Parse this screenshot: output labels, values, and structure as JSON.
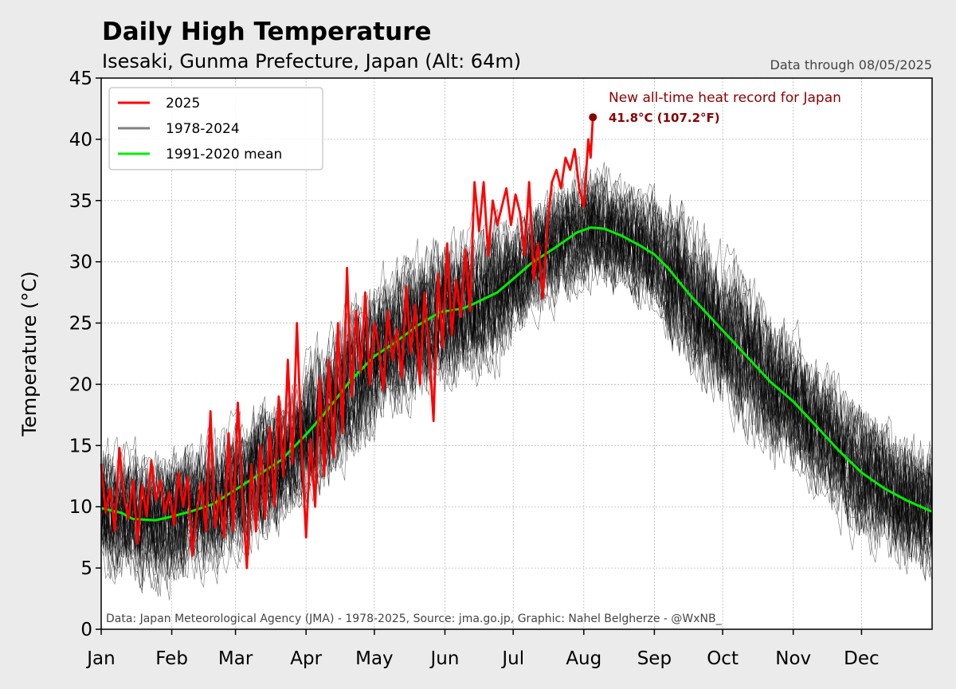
{
  "chart_data": {
    "type": "line",
    "title": "Daily High Temperature",
    "subtitle": "Isesaki, Gunma Prefecture, Japan (Alt: 64m)",
    "data_through": "Data through 08/05/2025",
    "ylabel": "Temperature (°C)",
    "xlabel": "",
    "ylim": [
      0,
      45
    ],
    "yticks": [
      0,
      5,
      10,
      15,
      20,
      25,
      30,
      35,
      40,
      45
    ],
    "xlim": [
      1,
      366
    ],
    "x_unit": "day of year",
    "month_ticks": [
      {
        "label": "Jan",
        "day": 1
      },
      {
        "label": "Feb",
        "day": 32
      },
      {
        "label": "Mar",
        "day": 60
      },
      {
        "label": "Apr",
        "day": 91
      },
      {
        "label": "May",
        "day": 121
      },
      {
        "label": "Jun",
        "day": 152
      },
      {
        "label": "Jul",
        "day": 182
      },
      {
        "label": "Aug",
        "day": 213
      },
      {
        "label": "Sep",
        "day": 244
      },
      {
        "label": "Oct",
        "day": 274
      },
      {
        "label": "Nov",
        "day": 305
      },
      {
        "label": "Dec",
        "day": 335
      }
    ],
    "grid": true,
    "legend_position": "top-left",
    "legend": [
      {
        "label": "2025",
        "color": "#ff0000"
      },
      {
        "label": "1978-2024",
        "color": "#808080"
      },
      {
        "label": "1991-2020 mean",
        "color": "#00ee00"
      }
    ],
    "series": [
      {
        "name": "1991-2020 mean",
        "color": "#00ee00",
        "points": [
          [
            1,
            9.9
          ],
          [
            10,
            9.5
          ],
          [
            15,
            9.0
          ],
          [
            25,
            8.9
          ],
          [
            32,
            9.2
          ],
          [
            40,
            9.6
          ],
          [
            50,
            10.2
          ],
          [
            60,
            11.4
          ],
          [
            70,
            12.6
          ],
          [
            80,
            13.8
          ],
          [
            91,
            15.9
          ],
          [
            100,
            17.8
          ],
          [
            110,
            20.2
          ],
          [
            121,
            22.3
          ],
          [
            130,
            23.4
          ],
          [
            140,
            24.8
          ],
          [
            150,
            25.9
          ],
          [
            160,
            26.2
          ],
          [
            165,
            26.6
          ],
          [
            175,
            27.5
          ],
          [
            182,
            28.6
          ],
          [
            190,
            29.9
          ],
          [
            200,
            31.1
          ],
          [
            210,
            32.4
          ],
          [
            216,
            32.8
          ],
          [
            222,
            32.7
          ],
          [
            230,
            32.1
          ],
          [
            238,
            31.3
          ],
          [
            244,
            30.6
          ],
          [
            250,
            29.5
          ],
          [
            260,
            27.2
          ],
          [
            274,
            24.4
          ],
          [
            285,
            22.2
          ],
          [
            295,
            20.2
          ],
          [
            305,
            18.6
          ],
          [
            315,
            16.6
          ],
          [
            325,
            14.6
          ],
          [
            335,
            12.8
          ],
          [
            345,
            11.5
          ],
          [
            355,
            10.5
          ],
          [
            366,
            9.6
          ]
        ]
      },
      {
        "name": "2025",
        "color": "#ff0000",
        "points": [
          [
            1,
            13.5
          ],
          [
            3,
            9.5
          ],
          [
            5,
            11.5
          ],
          [
            7,
            8.0
          ],
          [
            9,
            14.8
          ],
          [
            11,
            10.8
          ],
          [
            13,
            9.0
          ],
          [
            15,
            12.2
          ],
          [
            17,
            7.0
          ],
          [
            19,
            11.8
          ],
          [
            21,
            9.2
          ],
          [
            23,
            13.8
          ],
          [
            25,
            10.5
          ],
          [
            27,
            12.2
          ],
          [
            29,
            9.5
          ],
          [
            31,
            11.2
          ],
          [
            33,
            8.5
          ],
          [
            35,
            12.8
          ],
          [
            37,
            10.0
          ],
          [
            39,
            12.5
          ],
          [
            41,
            6.0
          ],
          [
            43,
            9.5
          ],
          [
            45,
            12.0
          ],
          [
            47,
            8.0
          ],
          [
            49,
            17.8
          ],
          [
            51,
            8.3
          ],
          [
            53,
            11.0
          ],
          [
            55,
            7.5
          ],
          [
            57,
            16.0
          ],
          [
            59,
            8.0
          ],
          [
            61,
            18.5
          ],
          [
            63,
            11.0
          ],
          [
            65,
            5.0
          ],
          [
            67,
            13.5
          ],
          [
            69,
            8.0
          ],
          [
            71,
            15.0
          ],
          [
            73,
            9.0
          ],
          [
            75,
            16.5
          ],
          [
            77,
            10.0
          ],
          [
            79,
            19.0
          ],
          [
            81,
            12.5
          ],
          [
            83,
            22.0
          ],
          [
            85,
            13.5
          ],
          [
            87,
            25.0
          ],
          [
            89,
            15.0
          ],
          [
            91,
            7.5
          ],
          [
            93,
            15.5
          ],
          [
            95,
            10.0
          ],
          [
            97,
            20.5
          ],
          [
            99,
            12.5
          ],
          [
            101,
            22.0
          ],
          [
            103,
            14.0
          ],
          [
            105,
            25.0
          ],
          [
            107,
            16.0
          ],
          [
            109,
            29.5
          ],
          [
            111,
            19.0
          ],
          [
            113,
            26.0
          ],
          [
            115,
            21.0
          ],
          [
            117,
            27.5
          ],
          [
            119,
            20.0
          ],
          [
            121,
            25.0
          ],
          [
            123,
            23.0
          ],
          [
            125,
            19.5
          ],
          [
            127,
            26.0
          ],
          [
            129,
            22.0
          ],
          [
            131,
            24.5
          ],
          [
            133,
            20.5
          ],
          [
            135,
            28.0
          ],
          [
            137,
            22.5
          ],
          [
            139,
            26.5
          ],
          [
            141,
            20.0
          ],
          [
            143,
            27.5
          ],
          [
            145,
            23.0
          ],
          [
            147,
            17.0
          ],
          [
            149,
            29.0
          ],
          [
            151,
            23.0
          ],
          [
            153,
            31.5
          ],
          [
            155,
            24.0
          ],
          [
            157,
            28.5
          ],
          [
            159,
            25.5
          ],
          [
            161,
            31.0
          ],
          [
            163,
            26.0
          ],
          [
            165,
            36.5
          ],
          [
            167,
            32.5
          ],
          [
            169,
            36.5
          ],
          [
            171,
            30.5
          ],
          [
            173,
            35.0
          ],
          [
            175,
            33.0
          ],
          [
            177,
            34.5
          ],
          [
            179,
            36.0
          ],
          [
            181,
            33.0
          ],
          [
            183,
            35.5
          ],
          [
            185,
            34.0
          ],
          [
            187,
            30.5
          ],
          [
            189,
            36.5
          ],
          [
            191,
            28.5
          ],
          [
            193,
            31.5
          ],
          [
            195,
            27.0
          ],
          [
            197,
            33.0
          ],
          [
            199,
            36.5
          ],
          [
            201,
            37.5
          ],
          [
            203,
            36.0
          ],
          [
            205,
            38.5
          ],
          [
            207,
            37.5
          ],
          [
            209,
            39.2
          ],
          [
            211,
            36.0
          ],
          [
            213,
            34.5
          ],
          [
            215,
            40.0
          ],
          [
            216,
            38.5
          ],
          [
            217,
            41.8
          ]
        ]
      }
    ],
    "historical_band": {
      "name": "1978-2024",
      "color": "#000000",
      "years": "1978-2024"
    },
    "annotation": {
      "line1": "New all-time heat record for Japan",
      "line2": "41.8°C (107.2°F)",
      "day": 217,
      "value": 41.8
    },
    "credit": "Data: Japan Meteorological Agency (JMA) - 1978-2025, Source: jma.go.jp, Graphic: Nahel Belgherze - @WxNB_"
  }
}
